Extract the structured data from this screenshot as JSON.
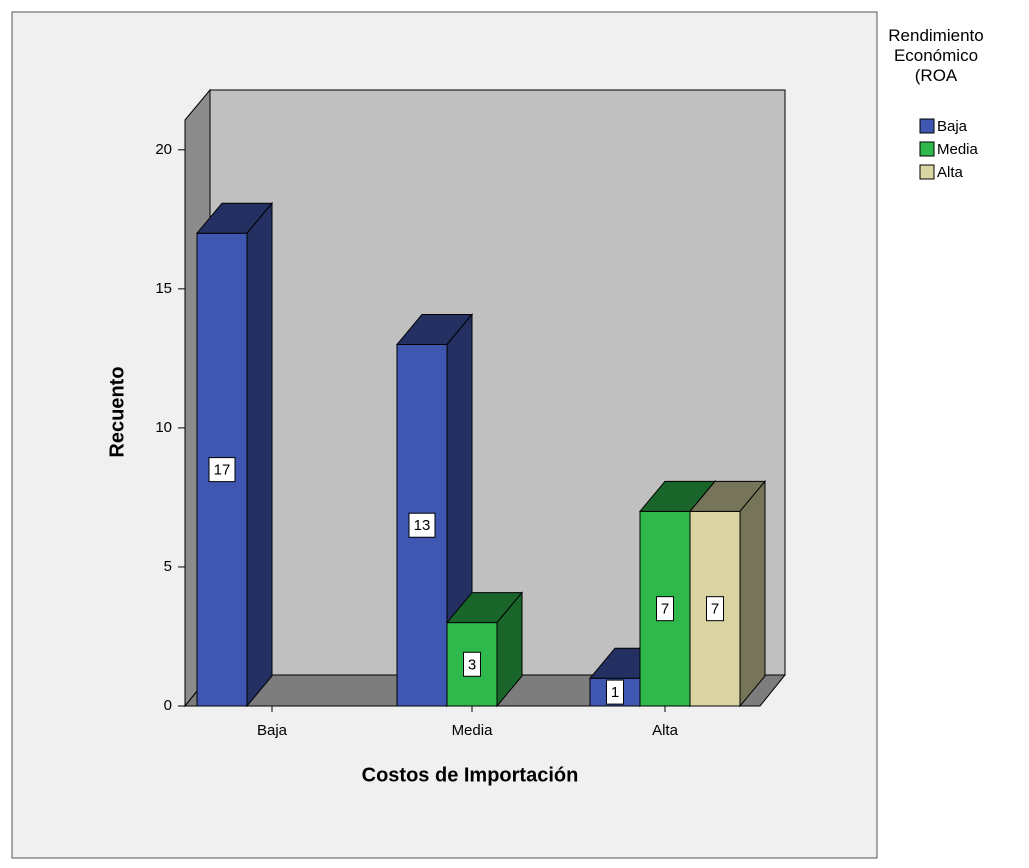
{
  "chart_data": {
    "type": "bar3d",
    "categories": [
      "Baja",
      "Media",
      "Alta"
    ],
    "series": [
      {
        "name": "Baja",
        "color": "#3f57b0",
        "values": [
          17,
          13,
          1
        ]
      },
      {
        "name": "Media",
        "color": "#2fb84b",
        "values": [
          null,
          3,
          7
        ]
      },
      {
        "name": "Alta",
        "color": "#d9d4a2",
        "values": [
          null,
          null,
          7
        ]
      }
    ],
    "ylim": [
      0,
      21
    ],
    "yticks": [
      0,
      5,
      10,
      15,
      20
    ],
    "ylabel": "Recuento",
    "xlabel": "Costos de Importación",
    "legend_title": "Rendimiento Económico (ROA",
    "grid": false,
    "legend": "right"
  }
}
